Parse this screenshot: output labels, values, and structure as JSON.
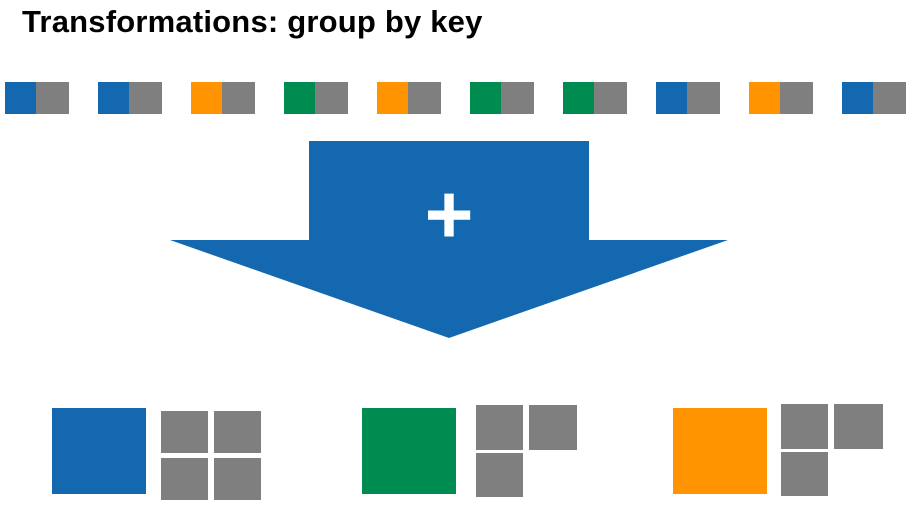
{
  "title": "Transformations: group by key",
  "colors": {
    "blue": "#1368b0",
    "green": "#008c50",
    "orange": "#ff9400",
    "value": "#7f7f7f"
  },
  "input_pairs": [
    {
      "key": "blue"
    },
    {
      "key": "blue"
    },
    {
      "key": "orange"
    },
    {
      "key": "green"
    },
    {
      "key": "orange"
    },
    {
      "key": "green"
    },
    {
      "key": "green"
    },
    {
      "key": "blue"
    },
    {
      "key": "orange"
    },
    {
      "key": "blue"
    }
  ],
  "operator_symbol": "+",
  "groups": [
    {
      "key": "blue",
      "value_count": 4
    },
    {
      "key": "green",
      "value_count": 3
    },
    {
      "key": "orange",
      "value_count": 3
    }
  ]
}
